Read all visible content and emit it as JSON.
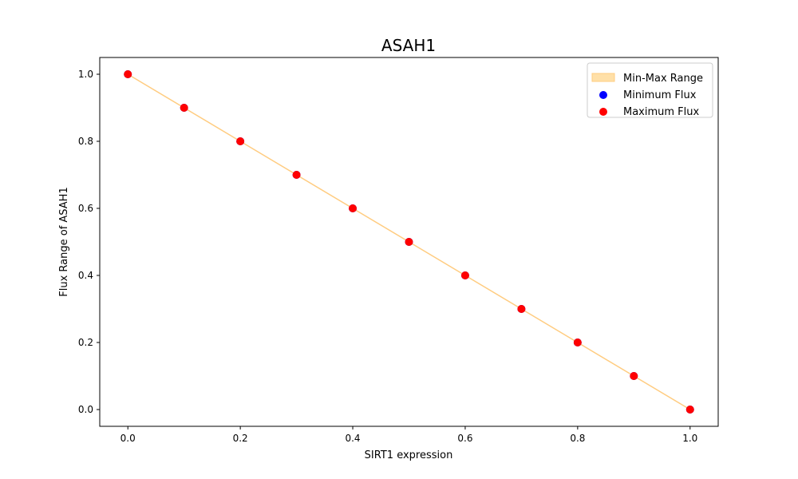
{
  "chart_data": {
    "type": "scatter",
    "title": "ASAH1",
    "xlabel": "SIRT1 expression",
    "ylabel": "Flux Range of ASAH1",
    "xlim": [
      -0.05,
      1.05
    ],
    "ylim": [
      -0.05,
      1.05
    ],
    "x_ticks": [
      0.0,
      0.2,
      0.4,
      0.6,
      0.8,
      1.0
    ],
    "x_tick_labels": [
      "0.0",
      "0.2",
      "0.4",
      "0.6",
      "0.8",
      "1.0"
    ],
    "y_ticks": [
      0.0,
      0.2,
      0.4,
      0.6,
      0.8,
      1.0
    ],
    "y_tick_labels": [
      "0.0",
      "0.2",
      "0.4",
      "0.6",
      "0.8",
      "1.0"
    ],
    "grid": false,
    "legend_position": "top-right",
    "x": [
      0.0,
      0.1,
      0.2,
      0.3,
      0.4,
      0.5,
      0.6,
      0.7,
      0.8,
      0.9,
      1.0
    ],
    "series": [
      {
        "name": "Min-Max Range",
        "kind": "band",
        "color": "#ffe0a8",
        "edge_color": "#ffcc80",
        "lower": [
          1.0,
          0.9,
          0.8,
          0.7,
          0.6,
          0.5,
          0.4,
          0.3,
          0.2,
          0.1,
          0.0
        ],
        "upper": [
          1.0,
          0.9,
          0.8,
          0.7,
          0.6,
          0.5,
          0.4,
          0.3,
          0.2,
          0.1,
          0.0
        ]
      },
      {
        "name": "Minimum Flux",
        "kind": "points",
        "color": "#0000ff",
        "values": [
          1.0,
          0.9,
          0.8,
          0.7,
          0.6,
          0.5,
          0.4,
          0.3,
          0.2,
          0.1,
          0.0
        ]
      },
      {
        "name": "Maximum Flux",
        "kind": "points",
        "color": "#ff0000",
        "values": [
          1.0,
          0.9,
          0.8,
          0.7,
          0.6,
          0.5,
          0.4,
          0.3,
          0.2,
          0.1,
          0.0
        ]
      }
    ]
  }
}
